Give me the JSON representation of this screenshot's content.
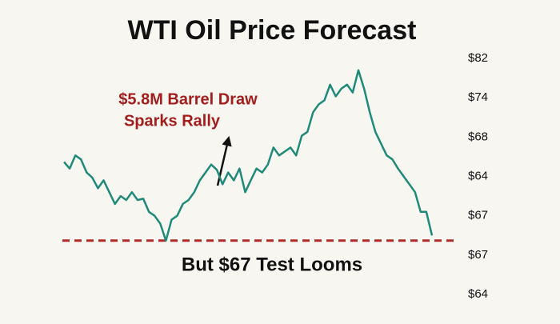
{
  "chart_data": {
    "type": "line",
    "title": "WTI Oil Price Forecast",
    "annotation": [
      "$5.8M Barrel Draw",
      "Sparks Rally"
    ],
    "reference_label": "But $67 Test Looms",
    "reference_line": 68.1,
    "reference_color": "#b02a2a",
    "y_axis_labels": [
      "$82",
      "$74",
      "$68",
      "$64",
      "$67",
      "$67",
      "$64"
    ],
    "ylim": [
      64,
      82
    ],
    "color": "#1f8a7a",
    "values": [
      74.1,
      73.6,
      74.6,
      74.3,
      73.3,
      72.9,
      72.1,
      72.7,
      71.8,
      70.9,
      71.5,
      71.2,
      71.8,
      71.2,
      71.3,
      70.3,
      70.0,
      69.4,
      68.1,
      69.7,
      70.0,
      70.9,
      71.2,
      71.8,
      72.7,
      73.3,
      73.9,
      73.5,
      72.4,
      73.3,
      72.7,
      73.6,
      71.8,
      72.7,
      73.6,
      73.3,
      73.9,
      75.2,
      74.6,
      74.9,
      75.2,
      74.6,
      76.1,
      76.4,
      77.9,
      78.5,
      78.8,
      80.0,
      79.1,
      79.7,
      80.0,
      79.4,
      81.1,
      79.7,
      77.9,
      76.4,
      75.5,
      74.6,
      74.3,
      73.6,
      73.0,
      72.4,
      71.8,
      70.3,
      70.3,
      68.5
    ]
  }
}
